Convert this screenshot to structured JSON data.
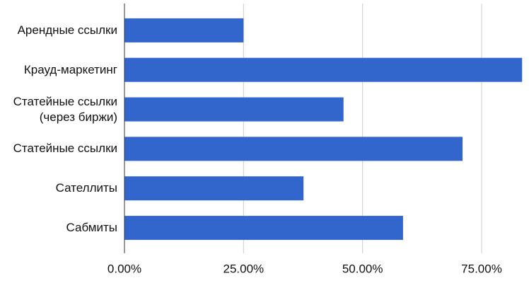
{
  "chart_data": {
    "type": "barh",
    "categories": [
      "Арендные ссылки",
      "Крауд-маркетинг",
      "Статейные ссылки\n(через биржи)",
      "Статейные ссылки",
      "Сателлиты",
      "Сабмиты"
    ],
    "values": [
      25,
      83.5,
      46,
      71,
      37.6,
      58.5
    ],
    "color": "#3366cc",
    "xlim": [
      0,
      84
    ],
    "xticks": [
      {
        "value": 0,
        "label": "0.00%"
      },
      {
        "value": 25,
        "label": "25.00%"
      },
      {
        "value": 50,
        "label": "50.00%"
      },
      {
        "value": 75,
        "label": "75.00%"
      }
    ],
    "grid": true
  }
}
